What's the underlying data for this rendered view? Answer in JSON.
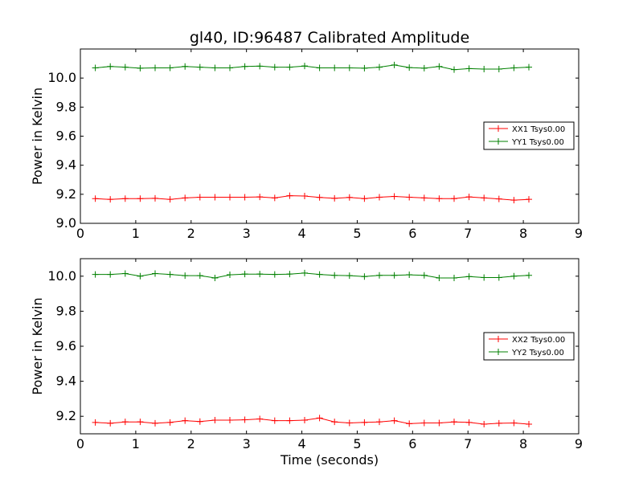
{
  "title": "gl40, ID:96487 Calibrated Amplitude",
  "chart_data": [
    {
      "type": "line",
      "title": "gl40, ID:96487 Calibrated Amplitude",
      "xlabel": "",
      "ylabel": "Power in Kelvin",
      "xlim": [
        0,
        9
      ],
      "ylim": [
        9.0,
        10.2
      ],
      "xticks": [
        "0",
        "1",
        "2",
        "3",
        "4",
        "5",
        "6",
        "7",
        "8",
        "9"
      ],
      "yticks": [
        "9.0",
        "9.2",
        "9.4",
        "9.6",
        "9.8",
        "10.0"
      ],
      "grid": false,
      "legend": "center-right",
      "x": [
        0.27,
        0.54,
        0.81,
        1.08,
        1.35,
        1.62,
        1.89,
        2.16,
        2.43,
        2.7,
        2.97,
        3.24,
        3.51,
        3.78,
        4.05,
        4.32,
        4.59,
        4.86,
        5.13,
        5.4,
        5.67,
        5.94,
        6.21,
        6.48,
        6.75,
        7.02,
        7.29,
        7.56,
        7.83,
        8.1
      ],
      "series": [
        {
          "name": "XX1 Tsys0.00",
          "color": "#ff0000",
          "values": [
            9.17,
            9.165,
            9.17,
            9.17,
            9.172,
            9.165,
            9.175,
            9.18,
            9.18,
            9.18,
            9.18,
            9.182,
            9.175,
            9.19,
            9.188,
            9.178,
            9.172,
            9.178,
            9.17,
            9.18,
            9.185,
            9.18,
            9.175,
            9.17,
            9.17,
            9.182,
            9.175,
            9.168,
            9.16,
            9.165
          ]
        },
        {
          "name": "YY1 Tsys0.00",
          "color": "#008000",
          "values": [
            10.07,
            10.08,
            10.075,
            10.068,
            10.07,
            10.07,
            10.08,
            10.075,
            10.07,
            10.07,
            10.08,
            10.082,
            10.075,
            10.075,
            10.083,
            10.07,
            10.07,
            10.07,
            10.068,
            10.075,
            10.09,
            10.072,
            10.068,
            10.08,
            10.058,
            10.065,
            10.062,
            10.062,
            10.07,
            10.075
          ]
        }
      ]
    },
    {
      "type": "line",
      "title": "",
      "xlabel": "Time (seconds)",
      "ylabel": "Power in Kelvin",
      "xlim": [
        0,
        9
      ],
      "ylim": [
        9.1,
        10.1
      ],
      "xticks": [
        "0",
        "1",
        "2",
        "3",
        "4",
        "5",
        "6",
        "7",
        "8",
        "9"
      ],
      "yticks": [
        "9.2",
        "9.4",
        "9.6",
        "9.8",
        "10.0"
      ],
      "grid": false,
      "legend": "center-right",
      "x": [
        0.27,
        0.54,
        0.81,
        1.08,
        1.35,
        1.62,
        1.89,
        2.16,
        2.43,
        2.7,
        2.97,
        3.24,
        3.51,
        3.78,
        4.05,
        4.32,
        4.59,
        4.86,
        5.13,
        5.4,
        5.67,
        5.94,
        6.21,
        6.48,
        6.75,
        7.02,
        7.29,
        7.56,
        7.83,
        8.1
      ],
      "series": [
        {
          "name": "XX2 Tsys0.00",
          "color": "#ff0000",
          "values": [
            9.165,
            9.16,
            9.168,
            9.168,
            9.16,
            9.165,
            9.175,
            9.17,
            9.178,
            9.178,
            9.18,
            9.185,
            9.175,
            9.175,
            9.178,
            9.19,
            9.168,
            9.162,
            9.165,
            9.168,
            9.175,
            9.158,
            9.162,
            9.162,
            9.168,
            9.165,
            9.155,
            9.16,
            9.162,
            9.155
          ]
        },
        {
          "name": "YY2 Tsys0.00",
          "color": "#008000",
          "values": [
            10.01,
            10.01,
            10.015,
            10.0,
            10.015,
            10.01,
            10.003,
            10.003,
            9.99,
            10.008,
            10.012,
            10.012,
            10.01,
            10.012,
            10.018,
            10.01,
            10.005,
            10.003,
            9.998,
            10.005,
            10.005,
            10.008,
            10.005,
            9.99,
            9.99,
            9.998,
            9.992,
            9.992,
            10.0,
            10.005
          ]
        }
      ]
    }
  ]
}
